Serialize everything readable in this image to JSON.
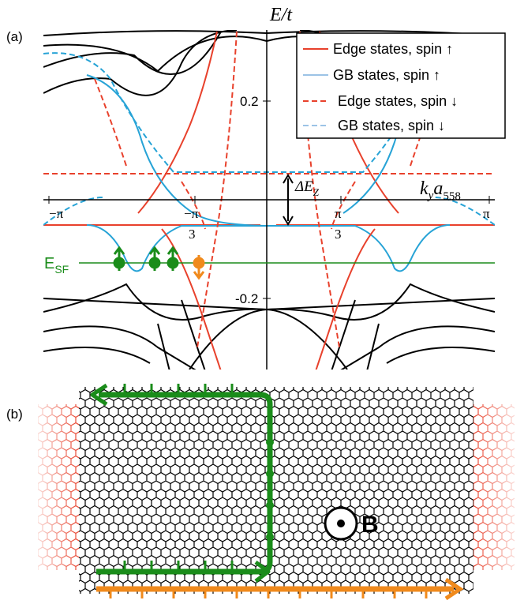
{
  "panel_a": {
    "label": "(a)",
    "y_axis_label": "E/t",
    "x_axis_label": [
      "k",
      "y",
      "a",
      "558"
    ],
    "x_tick_labels": [
      "−π",
      {
        "num": "−π",
        "den": "3"
      },
      {
        "num": "π",
        "den": "3"
      },
      "π"
    ],
    "y_tick_labels": [
      "0.2",
      "-0.2"
    ],
    "zeeman_label": [
      "ΔE",
      "Z"
    ],
    "fermi_label": [
      "E",
      "SF"
    ],
    "legend": [
      "Edge states, spin ↑",
      "GB states, spin ↑",
      "Edge states, spin ↓",
      "GB states, spin ↓"
    ]
  },
  "panel_b": {
    "label": "(b)",
    "field_label": "B"
  }
}
